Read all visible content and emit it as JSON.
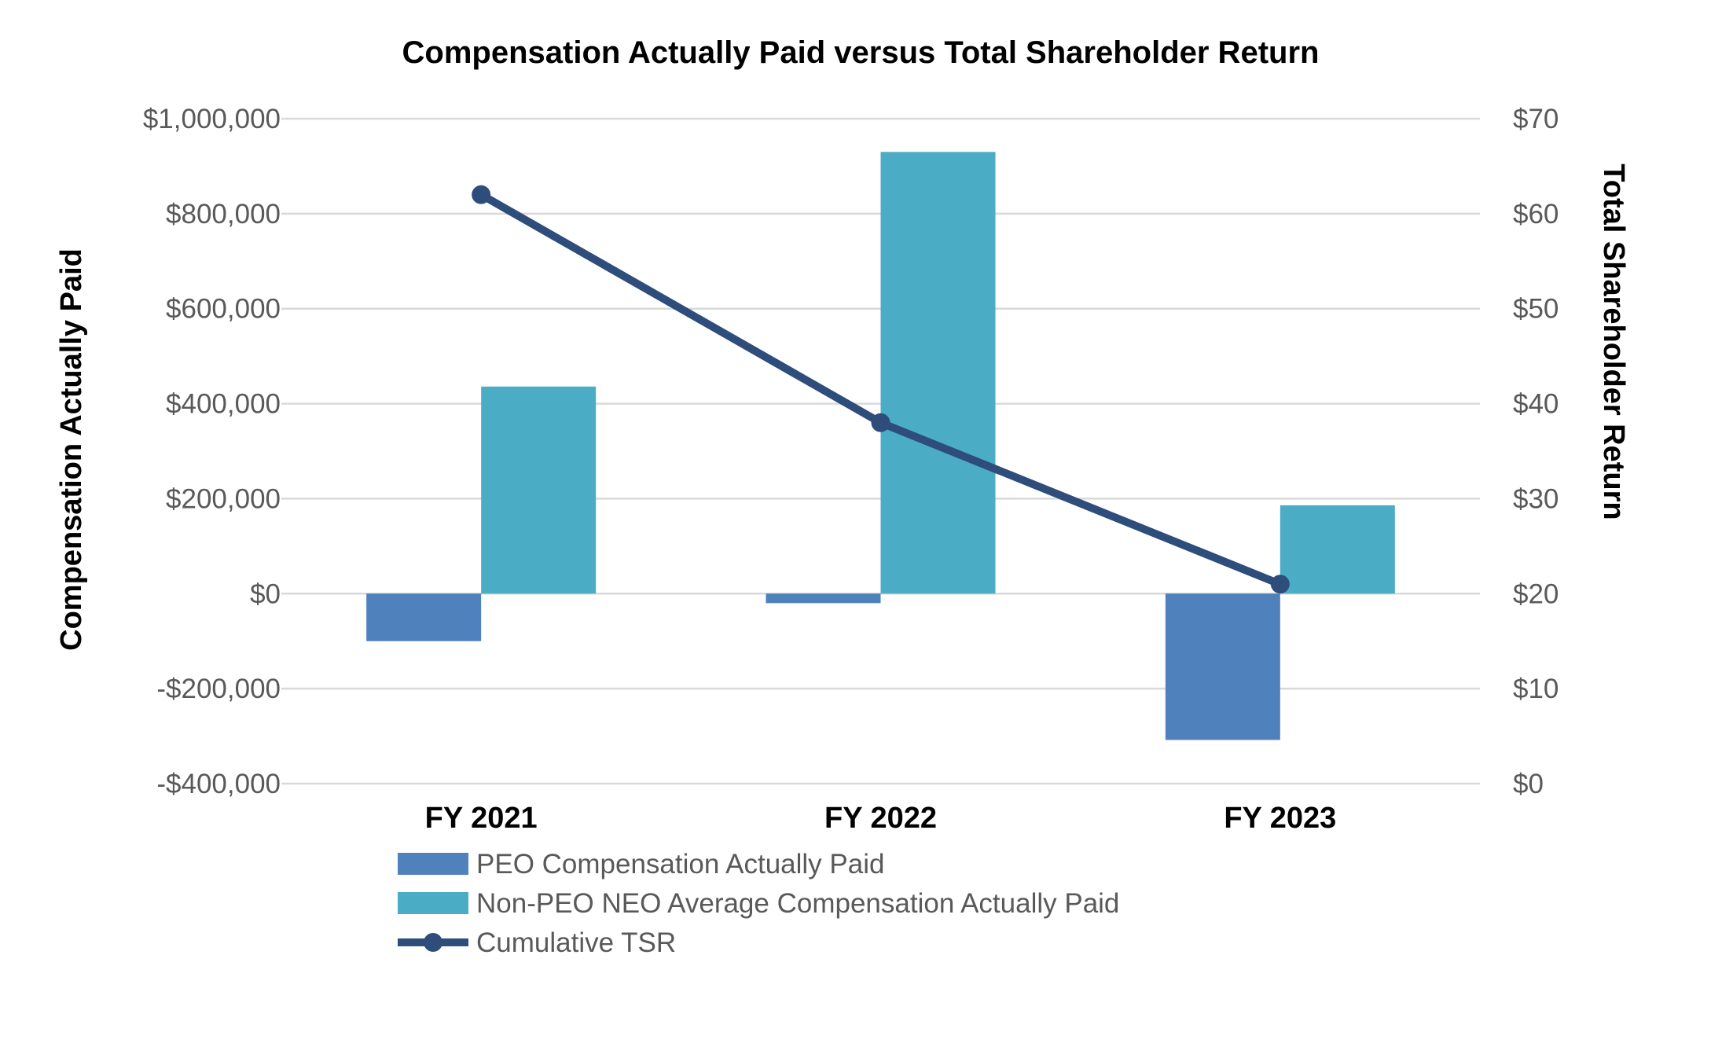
{
  "chart_data": {
    "type": "bar",
    "title": "Compensation Actually Paid versus Total Shareholder Return",
    "categories": [
      "FY 2021",
      "FY 2022",
      "FY 2023"
    ],
    "ylabel": "Compensation Actually Paid",
    "y2label": "Total Shareholder Return",
    "ylim": [
      -400000,
      1000000
    ],
    "y2lim": [
      0,
      70
    ],
    "yticks": [
      -400000,
      -200000,
      0,
      200000,
      400000,
      600000,
      800000,
      1000000
    ],
    "yticklabels": [
      "-$400,000",
      "-$200,000",
      "$0",
      "$200,000",
      "$400,000",
      "$600,000",
      "$800,000",
      "$1,000,000"
    ],
    "y2ticks": [
      0,
      10,
      20,
      30,
      40,
      50,
      60,
      70
    ],
    "y2ticklabels": [
      "$0",
      "$10",
      "$20",
      "$30",
      "$40",
      "$50",
      "$60",
      "$70"
    ],
    "grid": true,
    "legend_position": "bottom",
    "series": [
      {
        "name": "PEO Compensation Actually Paid",
        "type": "bar",
        "axis": "left",
        "color": "#4f81bd",
        "values": [
          -100000,
          -20000,
          -308000
        ]
      },
      {
        "name": "Non-PEO NEO Average Compensation Actually Paid",
        "type": "bar",
        "axis": "left",
        "color": "#4bacc6",
        "values": [
          436000,
          930000,
          186000
        ]
      },
      {
        "name": "Cumulative TSR",
        "type": "line",
        "axis": "right",
        "color": "#2e4d7b",
        "values": [
          62,
          38,
          21
        ]
      }
    ]
  }
}
